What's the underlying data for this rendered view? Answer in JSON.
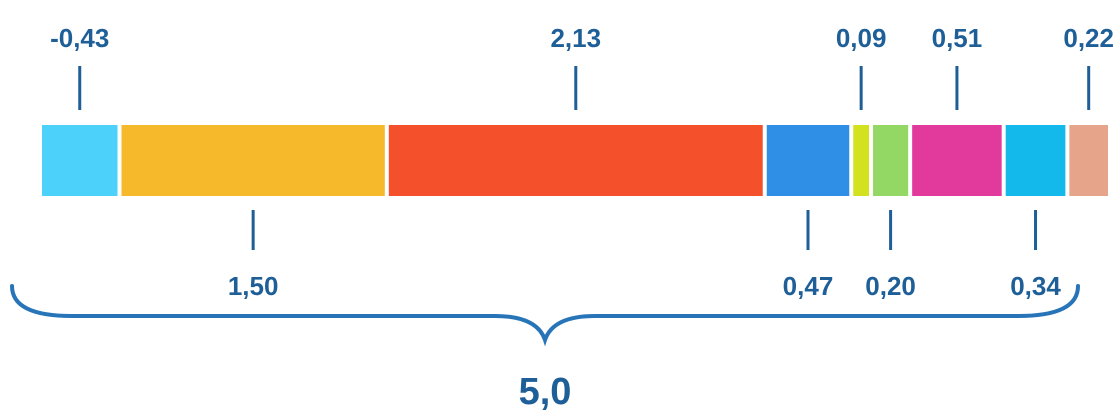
{
  "chart_data": {
    "type": "bar",
    "stacked": true,
    "orientation": "horizontal",
    "title": "",
    "xlabel": "",
    "ylabel": "",
    "segments": [
      {
        "label": "-0,43",
        "value": -0.43,
        "label_side": "top",
        "color": "#4cd1fb"
      },
      {
        "label": "1,50",
        "value": 1.5,
        "label_side": "bottom",
        "color": "#f6b92c"
      },
      {
        "label": "2,13",
        "value": 2.13,
        "label_side": "top",
        "color": "#f4502b"
      },
      {
        "label": "0,47",
        "value": 0.47,
        "label_side": "bottom",
        "color": "#2f8fe6"
      },
      {
        "label": "0,09",
        "value": 0.09,
        "label_side": "top",
        "color": "#d2e21f"
      },
      {
        "label": "0,20",
        "value": 0.2,
        "label_side": "bottom",
        "color": "#93d765"
      },
      {
        "label": "0,51",
        "value": 0.51,
        "label_side": "top",
        "color": "#e23a9c"
      },
      {
        "label": "0,34",
        "value": 0.34,
        "label_side": "bottom",
        "color": "#14b9ec"
      },
      {
        "label": "0,22",
        "value": 0.22,
        "label_side": "top",
        "color": "#e6a48a"
      }
    ],
    "total": {
      "label": "5,0",
      "value": 5.0
    },
    "colors": {
      "label_text": "#1f5f98",
      "tick": "#1f5f98",
      "brace": "#2874b8"
    }
  }
}
